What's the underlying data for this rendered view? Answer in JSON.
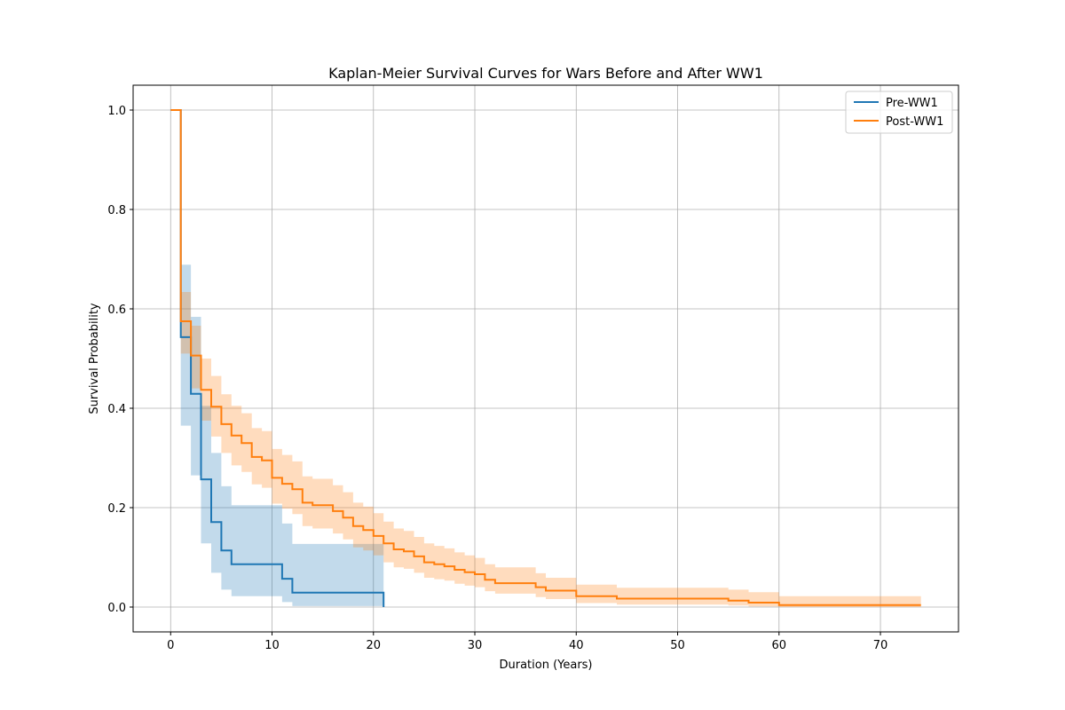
{
  "chart_data": {
    "type": "line",
    "title": "Kaplan-Meier Survival Curves for Wars Before and After WW1",
    "xlabel": "Duration (Years)",
    "ylabel": "Survival Probability",
    "xlim": [
      -3.7,
      77.7
    ],
    "ylim": [
      -0.05,
      1.05
    ],
    "xticks": [
      0,
      10,
      20,
      30,
      40,
      50,
      60,
      70
    ],
    "yticks": [
      0.0,
      0.2,
      0.4,
      0.6,
      0.8,
      1.0
    ],
    "xtick_labels": [
      "0",
      "10",
      "20",
      "30",
      "40",
      "50",
      "60",
      "70"
    ],
    "ytick_labels": [
      "0.0",
      "0.2",
      "0.4",
      "0.6",
      "0.8",
      "1.0"
    ],
    "grid": true,
    "legend_position": "top-right",
    "series": [
      {
        "name": "Pre-WW1",
        "color": "#1f77b4",
        "steps": [
          [
            0,
            1.0
          ],
          [
            1,
            0.543
          ],
          [
            2,
            0.429
          ],
          [
            3,
            0.257
          ],
          [
            4,
            0.171
          ],
          [
            5,
            0.114
          ],
          [
            6,
            0.086
          ],
          [
            11,
            0.057
          ],
          [
            12,
            0.029
          ],
          [
            21,
            0.0
          ]
        ],
        "ci_lower": [
          1.0,
          0.365,
          0.265,
          0.128,
          0.069,
          0.035,
          0.022,
          0.01,
          0.002,
          0.0
        ],
        "ci_upper": [
          1.0,
          0.689,
          0.584,
          0.405,
          0.31,
          0.243,
          0.205,
          0.168,
          0.127,
          0.0
        ],
        "end_x": 21
      },
      {
        "name": "Post-WW1",
        "color": "#ff7f0e",
        "steps": [
          [
            0,
            1.0
          ],
          [
            1,
            0.575
          ],
          [
            2,
            0.506
          ],
          [
            3,
            0.437
          ],
          [
            4,
            0.403
          ],
          [
            5,
            0.368
          ],
          [
            6,
            0.345
          ],
          [
            7,
            0.33
          ],
          [
            8,
            0.302
          ],
          [
            9,
            0.295
          ],
          [
            10,
            0.26
          ],
          [
            11,
            0.248
          ],
          [
            12,
            0.237
          ],
          [
            13,
            0.21
          ],
          [
            14,
            0.205
          ],
          [
            16,
            0.193
          ],
          [
            17,
            0.18
          ],
          [
            18,
            0.163
          ],
          [
            19,
            0.155
          ],
          [
            20,
            0.143
          ],
          [
            21,
            0.128
          ],
          [
            22,
            0.116
          ],
          [
            23,
            0.112
          ],
          [
            24,
            0.102
          ],
          [
            25,
            0.09
          ],
          [
            26,
            0.086
          ],
          [
            27,
            0.082
          ],
          [
            28,
            0.075
          ],
          [
            29,
            0.07
          ],
          [
            30,
            0.066
          ],
          [
            31,
            0.055
          ],
          [
            32,
            0.048
          ],
          [
            36,
            0.04
          ],
          [
            37,
            0.033
          ],
          [
            40,
            0.022
          ],
          [
            44,
            0.017
          ],
          [
            55,
            0.013
          ],
          [
            57,
            0.009
          ],
          [
            60,
            0.004
          ],
          [
            74,
            0.004
          ]
        ],
        "ci_lower": [
          1.0,
          0.51,
          0.44,
          0.375,
          0.343,
          0.31,
          0.285,
          0.272,
          0.247,
          0.24,
          0.208,
          0.198,
          0.187,
          0.163,
          0.158,
          0.148,
          0.136,
          0.12,
          0.114,
          0.104,
          0.09,
          0.08,
          0.077,
          0.069,
          0.059,
          0.056,
          0.053,
          0.047,
          0.043,
          0.04,
          0.032,
          0.027,
          0.02,
          0.016,
          0.008,
          0.005,
          0.003,
          0.001,
          0.0,
          0.0
        ],
        "ci_upper": [
          1.0,
          0.634,
          0.566,
          0.5,
          0.465,
          0.428,
          0.405,
          0.39,
          0.36,
          0.354,
          0.318,
          0.306,
          0.293,
          0.263,
          0.258,
          0.245,
          0.231,
          0.21,
          0.202,
          0.189,
          0.172,
          0.158,
          0.153,
          0.141,
          0.128,
          0.123,
          0.118,
          0.11,
          0.104,
          0.099,
          0.086,
          0.08,
          0.068,
          0.059,
          0.045,
          0.039,
          0.035,
          0.03,
          0.022,
          0.022
        ],
        "end_x": 74
      }
    ]
  }
}
